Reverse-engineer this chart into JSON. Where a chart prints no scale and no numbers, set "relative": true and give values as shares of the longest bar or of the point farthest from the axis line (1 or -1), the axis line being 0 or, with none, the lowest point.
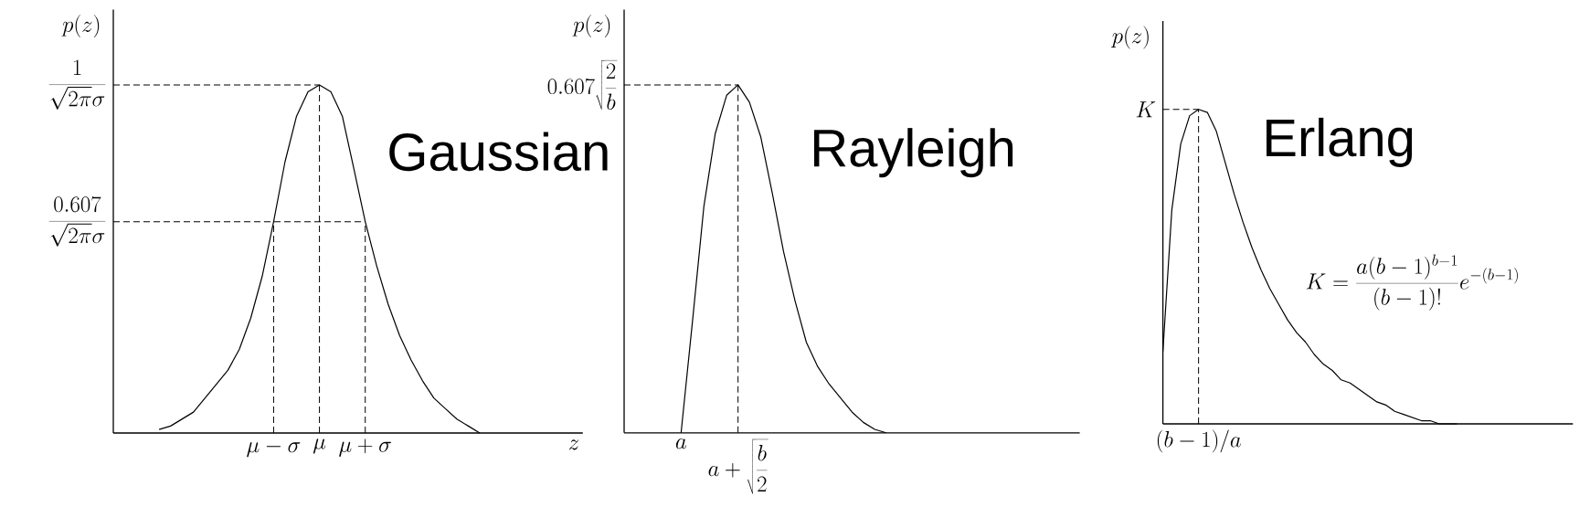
{
  "chart_data": [
    {
      "type": "line",
      "title": "Gaussian",
      "xlabel": "z",
      "ylabel": "p(z)",
      "color": "#000000",
      "relative": true,
      "categories": [
        null,
        null,
        null,
        null,
        null,
        null,
        null,
        null,
        null,
        null,
        null,
        null,
        null,
        null,
        "\\mu - \\sigma",
        null,
        null,
        null,
        "\\mu",
        null,
        null,
        null,
        "\\mu + \\sigma",
        null,
        null,
        null,
        null,
        null,
        null,
        null,
        null,
        null,
        null,
        null,
        null,
        null,
        null,
        null,
        null,
        null,
        null,
        null
      ],
      "values": [
        null,
        null,
        null,
        null,
        0.01,
        0.02,
        0.04,
        0.06,
        0.1,
        0.14,
        0.18,
        0.24,
        0.33,
        0.45,
        0.607,
        0.78,
        0.91,
        0.98,
        1,
        0.98,
        0.91,
        0.76,
        0.607,
        0.48,
        0.37,
        0.28,
        0.21,
        0.15,
        0.1,
        0.07,
        0.04,
        0.02,
        0,
        null,
        null,
        null,
        null,
        null,
        null,
        null,
        null,
        null
      ],
      "ref_lines": [
        {
          "axis": "y",
          "value": 1,
          "label": "\\frac{1}{\\sqrt{2\\pi}\\sigma}",
          "line_style": "dashed"
        },
        {
          "axis": "y",
          "value": 0.607,
          "label": "\\frac{0.607}{\\sqrt{2\\pi}\\sigma}",
          "line_style": "dashed"
        },
        {
          "axis": "x",
          "value": "\\mu - \\sigma",
          "line_style": "dashed"
        },
        {
          "axis": "x",
          "value": "\\mu",
          "line_style": "dashed"
        },
        {
          "axis": "x",
          "value": "\\mu + \\sigma",
          "line_style": "dashed"
        }
      ]
    },
    {
      "type": "line",
      "title": "Rayleigh",
      "ylabel": "p(z)",
      "color": "#000000",
      "relative": true,
      "categories": [
        null,
        null,
        null,
        null,
        null,
        "a",
        null,
        null,
        null,
        null,
        "a + \\sqrt{\\frac{b}{2}}",
        null,
        null,
        null,
        null,
        null,
        null,
        null,
        null,
        null,
        null,
        null,
        null,
        null,
        null,
        null,
        null,
        null,
        null,
        null,
        null,
        null,
        null,
        null,
        null,
        null,
        null,
        null,
        null,
        null,
        null
      ],
      "values": [
        null,
        null,
        null,
        null,
        null,
        0,
        0.32,
        0.65,
        0.86,
        0.97,
        1,
        0.95,
        0.85,
        0.69,
        0.52,
        0.38,
        0.26,
        0.19,
        0.14,
        0.1,
        0.06,
        0.03,
        0.01,
        0,
        null,
        null,
        null,
        null,
        null,
        null,
        null,
        null,
        null,
        null,
        null,
        null,
        null,
        null,
        null,
        null,
        null
      ],
      "ref_lines": [
        {
          "axis": "y",
          "value": 1,
          "label": "0.607\\sqrt{\\frac{2}{b}}",
          "line_style": "dashed"
        },
        {
          "axis": "x",
          "value": "a + \\sqrt{\\frac{b}{2}}",
          "line_style": "dashed"
        }
      ]
    },
    {
      "type": "line",
      "title": "Erlang",
      "ylabel": "p(z)",
      "color": "#000000",
      "relative": true,
      "categories": [
        null,
        null,
        null,
        null,
        null,
        null,
        null,
        null,
        null,
        null,
        null,
        null,
        null,
        null,
        null,
        null,
        null,
        null,
        null,
        null,
        null,
        null,
        null,
        null,
        null,
        null,
        null,
        null,
        null,
        null,
        null,
        null,
        null,
        null,
        null,
        null,
        null,
        null,
        null,
        null,
        null,
        null,
        null,
        null,
        null,
        null,
        null
      ],
      "values": [
        0.23,
        0.68,
        0.89,
        0.98,
        1,
        0.99,
        0.93,
        0.83,
        0.73,
        0.64,
        0.56,
        0.49,
        0.43,
        0.38,
        0.33,
        0.29,
        0.26,
        0.22,
        0.19,
        0.17,
        0.14,
        0.13,
        0.11,
        0.09,
        0.07,
        0.06,
        0.04,
        0.03,
        0.02,
        0.01,
        0.01,
        0,
        0,
        0,
        null,
        null,
        null,
        null,
        null,
        null,
        null,
        null,
        null,
        null,
        null,
        null,
        null
      ],
      "ref_lines": [
        {
          "axis": "y",
          "value": 1,
          "label": "K",
          "line_style": "dashed"
        }
      ],
      "annotations": [
        "(b-1)/a",
        "K = \\frac{a(b-1)^{b-1}}{(b-1)!}e^{-(b-1)}"
      ]
    }
  ]
}
